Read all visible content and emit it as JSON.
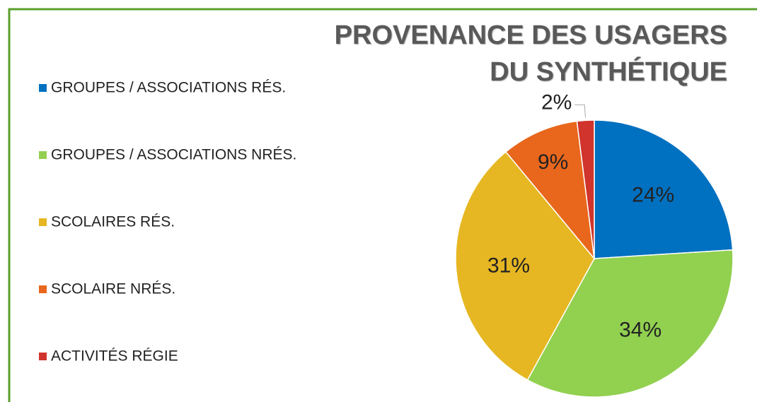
{
  "chart_data": {
    "type": "pie",
    "title": "PROVENANCE DES USAGERS DU SYNTHÉTIQUE",
    "categories": [
      "GROUPES / ASSOCIATIONS RÉS.",
      "GROUPES / ASSOCIATIONS NRÉS.",
      "SCOLAIRES RÉS.",
      "SCOLAIRE NRÉS.",
      "ACTIVITÉS RÉGIE"
    ],
    "values": [
      24,
      34,
      31,
      9,
      2
    ],
    "value_labels": [
      "24%",
      "34%",
      "31%",
      "9%",
      "2%"
    ],
    "colors": [
      "#0070c0",
      "#92d050",
      "#e6b722",
      "#e8671c",
      "#d0342c"
    ],
    "legend": "left"
  }
}
